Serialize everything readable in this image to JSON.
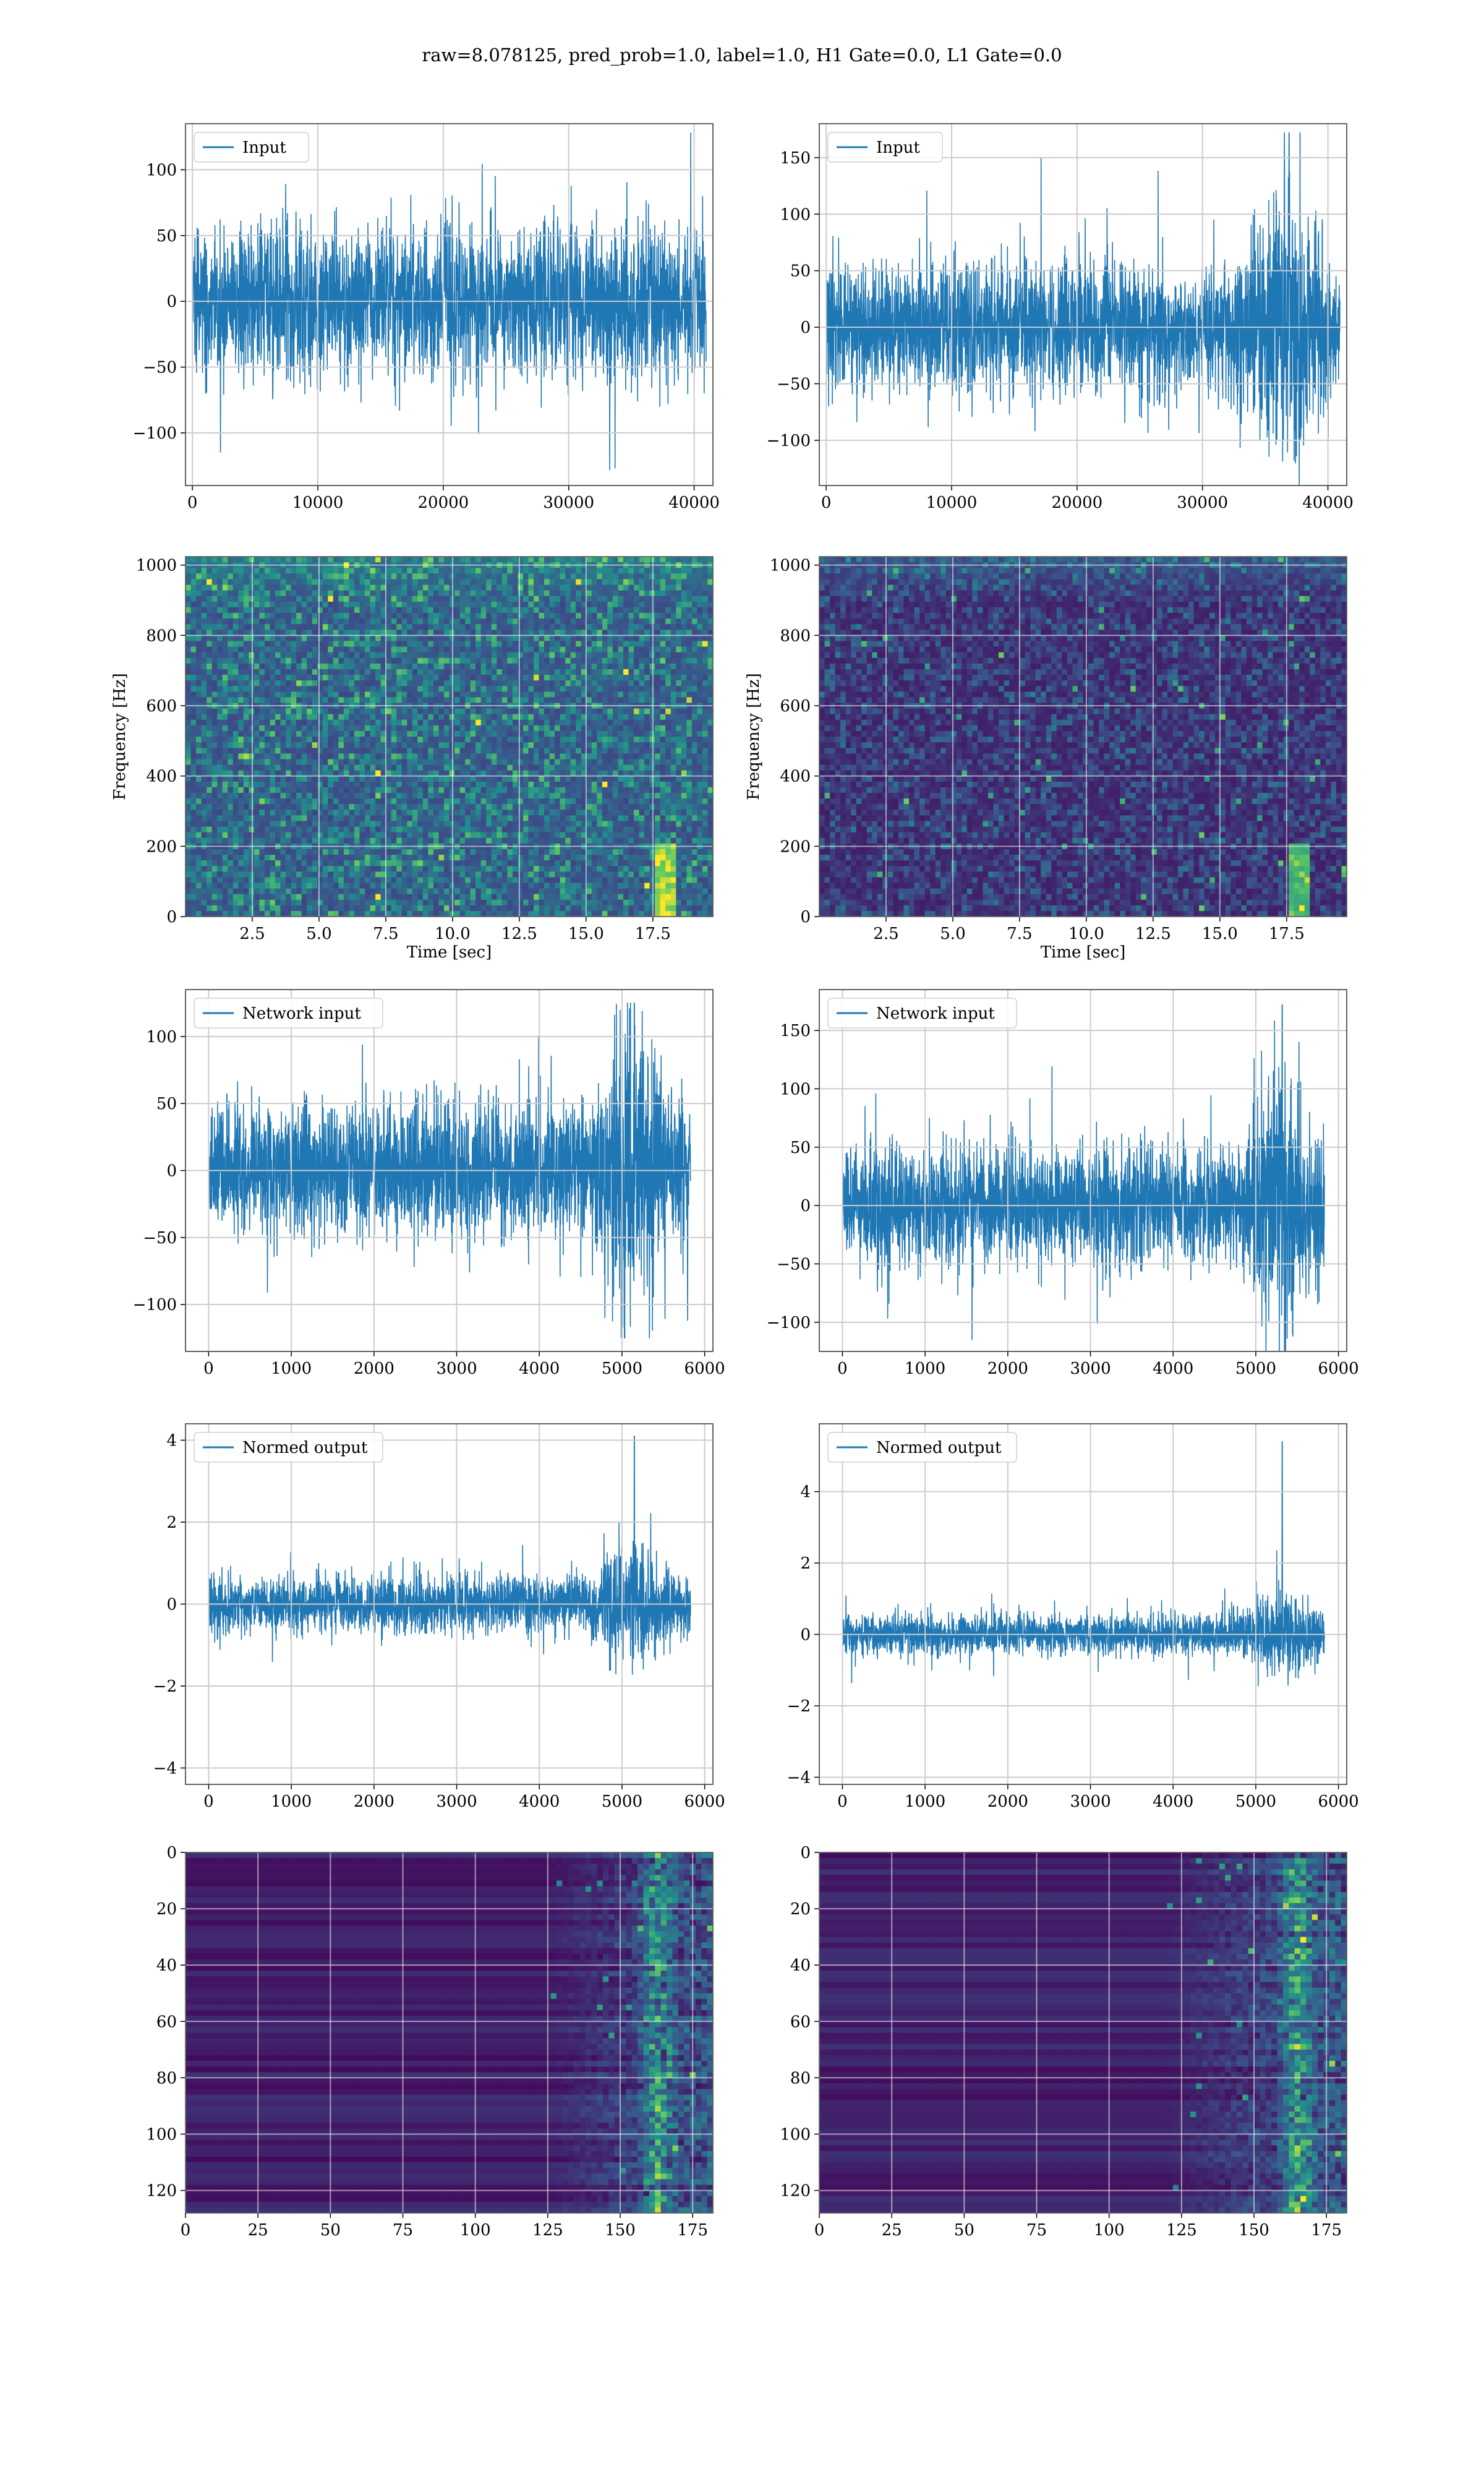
{
  "suptitle": "raw=8.078125, pred_prob=1.0, label=1.0, H1 Gate=0.0, L1 Gate=0.0",
  "colors": {
    "line": "#1f77b4",
    "grid": "#cccccc",
    "frame": "#555555"
  },
  "chart_data": [
    {
      "id": "input-h1",
      "type": "line",
      "legend": "Input",
      "legend_loc": "upper left",
      "xlim": [
        -550,
        41500
      ],
      "ylim": [
        -140,
        135
      ],
      "xticks": [
        0,
        10000,
        20000,
        30000,
        40000
      ],
      "xtick_labels": [
        "0",
        "10000",
        "20000",
        "30000",
        "40000"
      ],
      "yticks": [
        -100,
        -50,
        0,
        50,
        100
      ],
      "ytick_labels": [
        "−100",
        "−50",
        "0",
        "50",
        "100"
      ],
      "grid": true,
      "signal": {
        "x_max": 40960,
        "typical_band": 45,
        "max_abs": 128,
        "peak_at": null
      }
    },
    {
      "id": "input-l1",
      "type": "line",
      "legend": "Input",
      "legend_loc": "upper left",
      "xlim": [
        -550,
        41500
      ],
      "ylim": [
        -140,
        180
      ],
      "xticks": [
        0,
        10000,
        20000,
        30000,
        40000
      ],
      "xtick_labels": [
        "0",
        "10000",
        "20000",
        "30000",
        "40000"
      ],
      "yticks": [
        -100,
        -50,
        0,
        50,
        100,
        150
      ],
      "ytick_labels": [
        "−100",
        "−50",
        "0",
        "50",
        "100",
        "150"
      ],
      "grid": true,
      "signal": {
        "x_max": 40960,
        "typical_band": 45,
        "max_abs": 172,
        "peak_at": 36900
      }
    },
    {
      "id": "spectrogram-h1",
      "type": "heatmap",
      "colormap": "viridis",
      "xlabel": "Time [sec]",
      "ylabel": "Frequency [Hz]",
      "xlim": [
        0,
        19.75
      ],
      "ylim": [
        0,
        1024
      ],
      "xticks": [
        2.5,
        5,
        7.5,
        10,
        12.5,
        15,
        17.5
      ],
      "xtick_labels": [
        "2.5",
        "5.0",
        "7.5",
        "10.0",
        "12.5",
        "15.0",
        "17.5"
      ],
      "yticks": [
        0,
        200,
        400,
        600,
        800,
        1000
      ],
      "ytick_labels": [
        "0",
        "200",
        "400",
        "600",
        "800",
        "1000"
      ],
      "grid": true,
      "intensity": "moderate",
      "chirp_at": 18.0
    },
    {
      "id": "spectrogram-l1",
      "type": "heatmap",
      "colormap": "viridis",
      "xlabel": "Time [sec]",
      "ylabel": "Frequency [Hz]",
      "xlim": [
        0,
        19.75
      ],
      "ylim": [
        0,
        1024
      ],
      "xticks": [
        2.5,
        5,
        7.5,
        10,
        12.5,
        15,
        17.5
      ],
      "xtick_labels": [
        "2.5",
        "5.0",
        "7.5",
        "10.0",
        "12.5",
        "15.0",
        "17.5"
      ],
      "yticks": [
        0,
        200,
        400,
        600,
        800,
        1000
      ],
      "ytick_labels": [
        "0",
        "200",
        "400",
        "600",
        "800",
        "1000"
      ],
      "grid": true,
      "intensity": "low",
      "chirp_at": 18.0
    },
    {
      "id": "network-input-h1",
      "type": "line",
      "legend": "Network input",
      "legend_loc": "upper left",
      "xlim": [
        -280,
        6100
      ],
      "ylim": [
        -135,
        135
      ],
      "xticks": [
        0,
        1000,
        2000,
        3000,
        4000,
        5000,
        6000
      ],
      "xtick_labels": [
        "0",
        "1000",
        "2000",
        "3000",
        "4000",
        "5000",
        "6000"
      ],
      "yticks": [
        -100,
        -50,
        0,
        50,
        100
      ],
      "ytick_labels": [
        "−100",
        "−50",
        "0",
        "50",
        "100"
      ],
      "grid": true,
      "signal": {
        "x_max": 5830,
        "typical_band": 40,
        "max_abs": 125,
        "peak_at": 5150
      }
    },
    {
      "id": "network-input-l1",
      "type": "line",
      "legend": "Network input",
      "legend_loc": "upper left",
      "xlim": [
        -280,
        6100
      ],
      "ylim": [
        -125,
        185
      ],
      "xticks": [
        0,
        1000,
        2000,
        3000,
        4000,
        5000,
        6000
      ],
      "xtick_labels": [
        "0",
        "1000",
        "2000",
        "3000",
        "4000",
        "5000",
        "6000"
      ],
      "yticks": [
        -100,
        -50,
        0,
        50,
        100,
        150
      ],
      "ytick_labels": [
        "−100",
        "−50",
        "0",
        "50",
        "100",
        "150"
      ],
      "grid": true,
      "signal": {
        "x_max": 5830,
        "typical_band": 40,
        "max_abs": 172,
        "peak_at": 5320
      }
    },
    {
      "id": "normed-output-h1",
      "type": "line",
      "legend": "Normed output",
      "legend_loc": "upper left",
      "xlim": [
        -280,
        6100
      ],
      "ylim": [
        -4.4,
        4.4
      ],
      "xticks": [
        0,
        1000,
        2000,
        3000,
        4000,
        5000,
        6000
      ],
      "xtick_labels": [
        "0",
        "1000",
        "2000",
        "3000",
        "4000",
        "5000",
        "6000"
      ],
      "yticks": [
        -4,
        -2,
        0,
        2,
        4
      ],
      "ytick_labels": [
        "−4",
        "−2",
        "0",
        "2",
        "4"
      ],
      "grid": true,
      "signal": {
        "x_max": 5830,
        "typical_band": 0.55,
        "max_abs": 4.1,
        "peak_at": 5150
      }
    },
    {
      "id": "normed-output-l1",
      "type": "line",
      "legend": "Normed output",
      "legend_loc": "upper left",
      "xlim": [
        -280,
        6100
      ],
      "ylim": [
        -4.2,
        5.9
      ],
      "xticks": [
        0,
        1000,
        2000,
        3000,
        4000,
        5000,
        6000
      ],
      "xtick_labels": [
        "0",
        "1000",
        "2000",
        "3000",
        "4000",
        "5000",
        "6000"
      ],
      "yticks": [
        -4,
        -2,
        0,
        2,
        4
      ],
      "ytick_labels": [
        "−4",
        "−2",
        "0",
        "2",
        "4"
      ],
      "grid": true,
      "signal": {
        "x_max": 5830,
        "typical_band": 0.45,
        "max_abs": 5.4,
        "peak_at": 5320
      }
    },
    {
      "id": "feature-map-h1",
      "type": "heatmap",
      "colormap": "viridis",
      "y_inverted": true,
      "xlim": [
        0,
        182
      ],
      "ylim": [
        128,
        0
      ],
      "xticks": [
        0,
        25,
        50,
        75,
        100,
        125,
        150,
        175
      ],
      "xtick_labels": [
        "0",
        "25",
        "50",
        "75",
        "100",
        "125",
        "150",
        "175"
      ],
      "yticks": [
        0,
        20,
        40,
        60,
        80,
        100,
        120
      ],
      "ytick_labels": [
        "0",
        "20",
        "40",
        "60",
        "80",
        "100",
        "120"
      ],
      "grid": true,
      "active_from": 125,
      "hot_at": 163
    },
    {
      "id": "feature-map-l1",
      "type": "heatmap",
      "colormap": "viridis",
      "y_inverted": true,
      "xlim": [
        0,
        182
      ],
      "ylim": [
        128,
        0
      ],
      "xticks": [
        0,
        25,
        50,
        75,
        100,
        125,
        150,
        175
      ],
      "xtick_labels": [
        "0",
        "25",
        "50",
        "75",
        "100",
        "125",
        "150",
        "175"
      ],
      "yticks": [
        0,
        20,
        40,
        60,
        80,
        100,
        120
      ],
      "ytick_labels": [
        "0",
        "20",
        "40",
        "60",
        "80",
        "100",
        "120"
      ],
      "grid": true,
      "active_from": 120,
      "hot_at": 165
    }
  ]
}
